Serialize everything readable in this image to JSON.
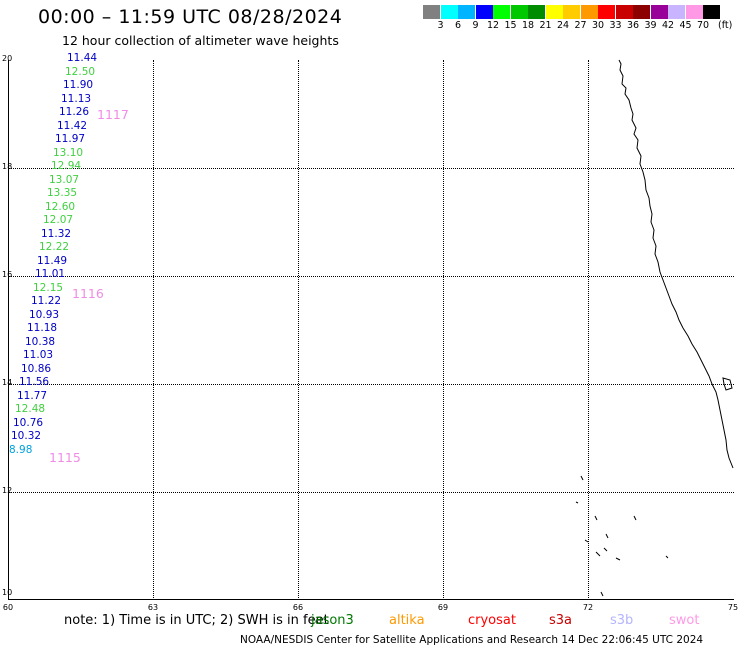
{
  "header": {
    "title": "00:00 – 11:59 UTC 08/28/2024",
    "subtitle": "12 hour collection of altimeter wave heights"
  },
  "colorbar": {
    "colors": [
      "#808080",
      "#00ffff",
      "#00b4ff",
      "#0000ff",
      "#00ff00",
      "#00c800",
      "#008c00",
      "#ffff00",
      "#ffcc00",
      "#ff9900",
      "#ff0000",
      "#c80000",
      "#8c0000",
      "#990099",
      "#c8b4ff",
      "#ff99e6",
      "#000000"
    ],
    "ticks": [
      "3",
      "6",
      "9",
      "12",
      "15",
      "18",
      "21",
      "24",
      "27",
      "30",
      "33",
      "36",
      "39",
      "42",
      "45",
      "70"
    ],
    "unit": "(ft)"
  },
  "axes": {
    "y_ticks": [
      "20",
      "18",
      "16",
      "14",
      "12",
      "10"
    ],
    "x_ticks": [
      "60",
      "63",
      "66",
      "69",
      "72",
      "75"
    ]
  },
  "wave_heights": [
    {
      "text": "11.44",
      "color": "#0000c8"
    },
    {
      "text": "12.50",
      "color": "#40d040"
    },
    {
      "text": "11.90",
      "color": "#0000c8"
    },
    {
      "text": "11.13",
      "color": "#0000c8"
    },
    {
      "text": "11.26",
      "color": "#0000c8"
    },
    {
      "text": "11.42",
      "color": "#0000c8"
    },
    {
      "text": "11.97",
      "color": "#0000c8"
    },
    {
      "text": "13.10",
      "color": "#40d040"
    },
    {
      "text": "12.94",
      "color": "#40d040"
    },
    {
      "text": "13.07",
      "color": "#40d040"
    },
    {
      "text": "13.35",
      "color": "#40d040"
    },
    {
      "text": "12.60",
      "color": "#40d040"
    },
    {
      "text": "12.07",
      "color": "#40d040"
    },
    {
      "text": "11.32",
      "color": "#0000c8"
    },
    {
      "text": "12.22",
      "color": "#40d040"
    },
    {
      "text": "11.49",
      "color": "#0000c8"
    },
    {
      "text": "11.01",
      "color": "#0000c8"
    },
    {
      "text": "12.15",
      "color": "#40d040"
    },
    {
      "text": "11.22",
      "color": "#0000c8"
    },
    {
      "text": "10.93",
      "color": "#0000c8"
    },
    {
      "text": "11.18",
      "color": "#0000c8"
    },
    {
      "text": "10.38",
      "color": "#0000c8"
    },
    {
      "text": "11.03",
      "color": "#0000c8"
    },
    {
      "text": "10.86",
      "color": "#0000c8"
    },
    {
      "text": "11.56",
      "color": "#0000c8"
    },
    {
      "text": "11.77",
      "color": "#0000c8"
    },
    {
      "text": "12.48",
      "color": "#40d040"
    },
    {
      "text": "10.76",
      "color": "#0000c8"
    },
    {
      "text": "10.32",
      "color": "#0000c8"
    },
    {
      "text": "8.98",
      "color": "#00a0e0"
    }
  ],
  "orbits": [
    "1117",
    "1116",
    "1115"
  ],
  "legend": {
    "note": "note:  1) Time is in UTC; 2) SWH is in feet",
    "satellites": [
      {
        "name": "jason3",
        "color": "#007800"
      },
      {
        "name": "altika",
        "color": "#ff9900"
      },
      {
        "name": "cryosat",
        "color": "#ff0000"
      },
      {
        "name": "s3a",
        "color": "#c80000"
      },
      {
        "name": "s3b",
        "color": "#b4b4ff"
      },
      {
        "name": "swot",
        "color": "#ff99e6"
      }
    ]
  },
  "footer": "NOAA/NESDIS Center for Satellite Applications and Research    14 Dec 22:06:45 UTC 2024"
}
